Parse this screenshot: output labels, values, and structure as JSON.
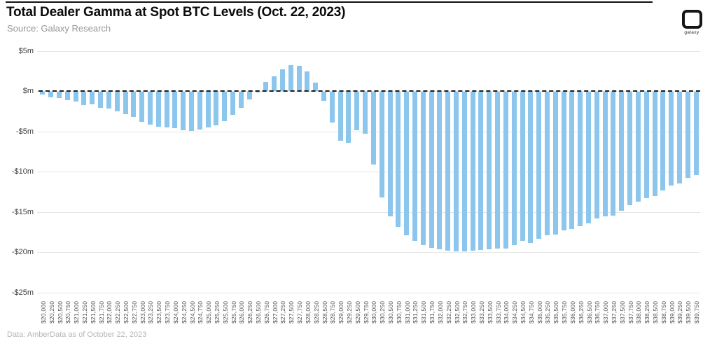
{
  "header": {
    "title": "Total Dealer Gamma at Spot BTC Levels (Oct. 22, 2023)",
    "source": "Source: Galaxy Research",
    "logo_text": "galaxy"
  },
  "footer": {
    "note": "Data: AmberData as of October 22, 2023"
  },
  "chart_data": {
    "type": "bar",
    "title": "Total Dealer Gamma at Spot BTC Levels (Oct. 22, 2023)",
    "xlabel": "",
    "ylabel": "",
    "unit": "millions USD",
    "bar_color": "#8cc6ec",
    "grid": true,
    "zero_line": "black-dashed",
    "legend": "none",
    "ylim": [
      -25,
      5
    ],
    "yticks": [
      {
        "label": "$5m",
        "value": 5
      },
      {
        "label": "$m",
        "value": 0
      },
      {
        "label": "-$5m",
        "value": -5
      },
      {
        "label": "-$10m",
        "value": -10
      },
      {
        "label": "-$15m",
        "value": -15
      },
      {
        "label": "-$20m",
        "value": -20
      },
      {
        "label": "-$25m",
        "value": -25
      }
    ],
    "categories": [
      "$20,000",
      "$20,250",
      "$20,500",
      "$20,750",
      "$21,000",
      "$21,250",
      "$21,500",
      "$21,750",
      "$22,000",
      "$22,250",
      "$22,500",
      "$22,750",
      "$23,000",
      "$23,250",
      "$23,500",
      "$23,750",
      "$24,000",
      "$24,250",
      "$24,500",
      "$24,750",
      "$25,000",
      "$25,250",
      "$25,500",
      "$25,750",
      "$26,000",
      "$26,250",
      "$26,500",
      "$26,750",
      "$27,000",
      "$27,250",
      "$27,500",
      "$27,750",
      "$28,000",
      "$28,250",
      "$28,500",
      "$28,750",
      "$29,000",
      "$29,250",
      "$29,500",
      "$29,750",
      "$30,000",
      "$30,250",
      "$30,500",
      "$30,750",
      "$31,000",
      "$31,250",
      "$31,500",
      "$31,750",
      "$32,000",
      "$32,250",
      "$32,500",
      "$32,750",
      "$33,000",
      "$33,250",
      "$33,500",
      "$33,750",
      "$34,000",
      "$34,250",
      "$34,500",
      "$34,750",
      "$35,000",
      "$35,250",
      "$35,500",
      "$35,750",
      "$36,000",
      "$36,250",
      "$36,500",
      "$36,750",
      "$37,000",
      "$37,250",
      "$37,500",
      "$37,750",
      "$38,000",
      "$38,250",
      "$38,500",
      "$38,750",
      "$39,000",
      "$39,250",
      "$39,500",
      "$39,750"
    ],
    "values": [
      -0.4,
      -0.7,
      -0.8,
      -1.1,
      -1.3,
      -1.7,
      -1.6,
      -2.0,
      -2.1,
      -2.5,
      -2.8,
      -3.2,
      -3.8,
      -4.1,
      -4.4,
      -4.5,
      -4.6,
      -4.8,
      -4.9,
      -4.7,
      -4.5,
      -4.2,
      -3.7,
      -2.9,
      -2.0,
      -1.0,
      -0.1,
      1.2,
      1.9,
      2.7,
      3.3,
      3.2,
      2.5,
      1.1,
      -1.2,
      -3.9,
      -6.1,
      -6.4,
      -4.8,
      -5.3,
      -9.1,
      -13.2,
      -15.5,
      -16.8,
      -17.9,
      -18.6,
      -19.1,
      -19.4,
      -19.6,
      -19.8,
      -19.9,
      -19.9,
      -19.8,
      -19.7,
      -19.6,
      -19.5,
      -19.5,
      -19.1,
      -18.6,
      -18.8,
      -18.3,
      -17.9,
      -17.8,
      -17.3,
      -17.1,
      -16.7,
      -16.4,
      -15.8,
      -15.5,
      -15.4,
      -14.8,
      -14.1,
      -13.7,
      -13.3,
      -13.0,
      -12.3,
      -11.7,
      -11.4,
      -10.7,
      -10.4
    ]
  }
}
